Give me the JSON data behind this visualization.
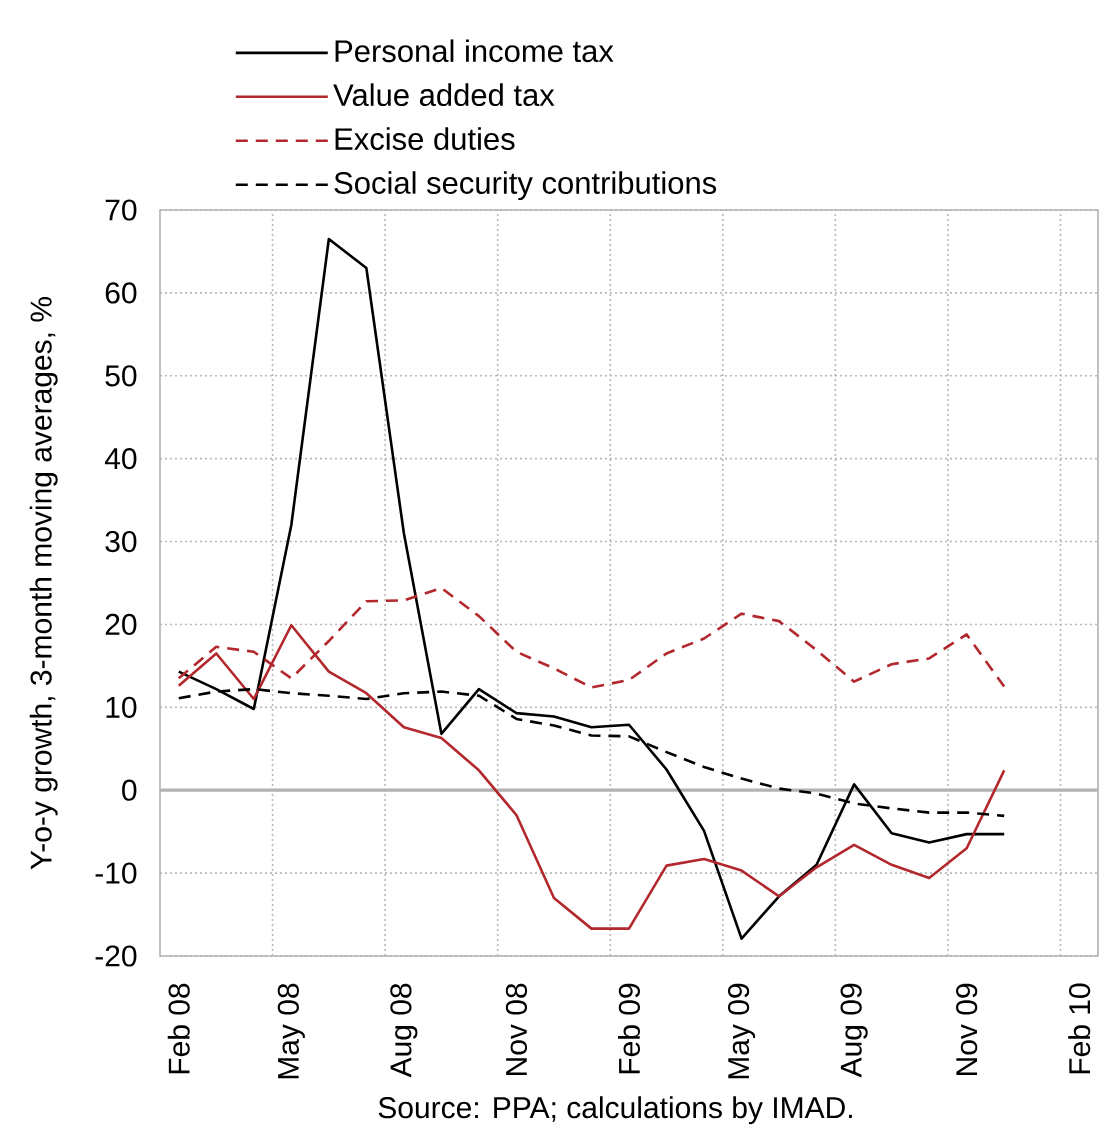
{
  "chart_data": {
    "type": "line",
    "categories": [
      "Feb 08",
      null,
      null,
      "May 08",
      null,
      null,
      "Aug 08",
      null,
      null,
      "Nov 08",
      null,
      null,
      "Feb 09",
      null,
      null,
      "May 09",
      null,
      null,
      "Aug 09",
      null,
      null,
      "Nov 09",
      null,
      null,
      "Feb 10"
    ],
    "series": [
      {
        "name": "Personal income tax",
        "color": "#000000",
        "line_style": "solid",
        "values": [
          14.3,
          12.2,
          9.8,
          32,
          66.5,
          63,
          31,
          6.8,
          12.2,
          9.3,
          8.9,
          7.6,
          7.9,
          2.5,
          -4.9,
          -17.9,
          -12.8,
          -9,
          0.7,
          -5.2,
          -6.3,
          -5.3,
          -5.3,
          null,
          null
        ]
      },
      {
        "name": "Value added tax",
        "color": "#b2282d",
        "line_style": "solid",
        "values": [
          12.6,
          16.5,
          11,
          19.9,
          14.3,
          11.7,
          7.6,
          6.3,
          2.4,
          -3,
          -13,
          -16.7,
          -16.7,
          -9.1,
          -8.3,
          -9.7,
          -12.8,
          -9.3,
          -6.6,
          -9,
          -10.6,
          -7,
          2.4,
          null,
          null
        ]
      },
      {
        "name": "Excise duties",
        "color": "#b2282d",
        "line_style": "dashed",
        "values": [
          13.5,
          17.3,
          16.7,
          13.5,
          18,
          22.8,
          22.9,
          24.4,
          21,
          16.7,
          14.7,
          12.4,
          13.3,
          16.5,
          18.3,
          21.3,
          20.4,
          16.9,
          13.1,
          15.2,
          15.9,
          18.8,
          12.5,
          null,
          null
        ]
      },
      {
        "name": "Social security contributions",
        "color": "#000000",
        "line_style": "dashed",
        "values": [
          11.1,
          11.9,
          12.2,
          11.7,
          11.4,
          11,
          11.7,
          11.9,
          11.4,
          8.6,
          7.8,
          6.6,
          6.5,
          4.6,
          2.8,
          1.4,
          0.2,
          -0.4,
          -1.6,
          -2.2,
          -2.7,
          -2.7,
          -3.1,
          null,
          null
        ]
      }
    ],
    "ylabel": "Y-o-y growth, 3-month moving averages, %",
    "ylim": [
      -20,
      70
    ],
    "yticks": [
      -20,
      -10,
      0,
      10,
      20,
      30,
      40,
      50,
      60,
      70
    ],
    "grid": true,
    "legend": "top",
    "annotations": [
      "Source: PPA; calculations by IMAD."
    ]
  }
}
